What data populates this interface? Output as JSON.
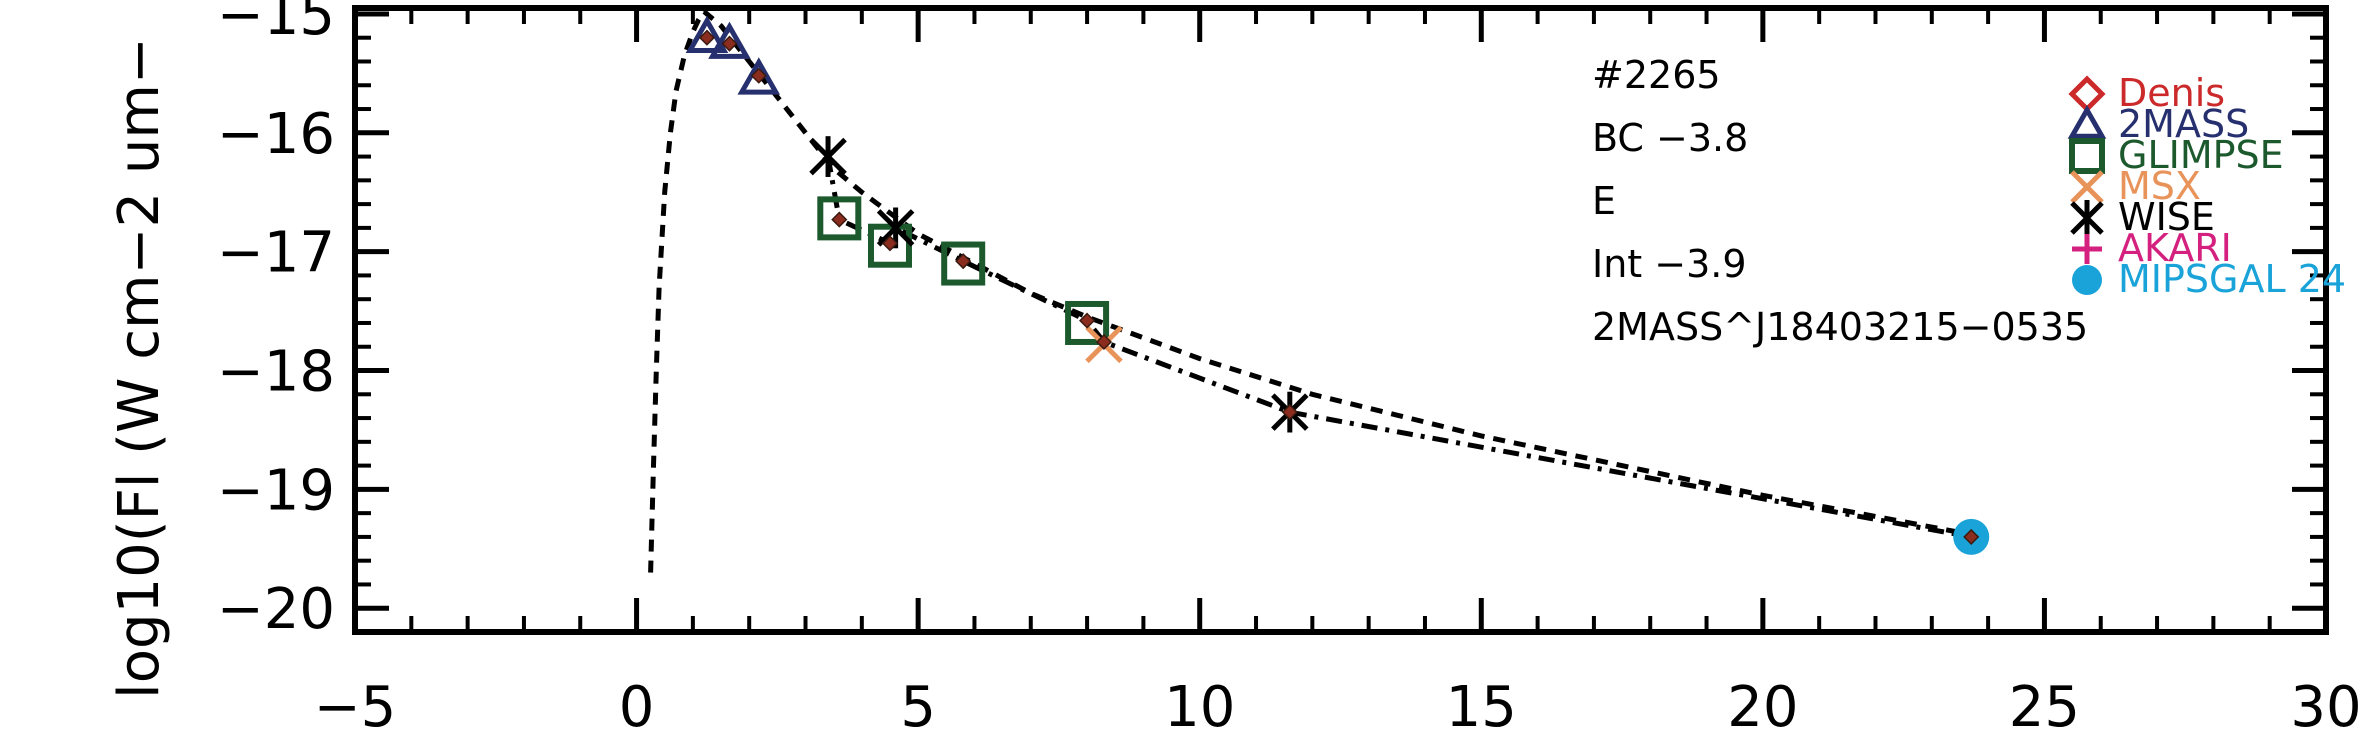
{
  "chart_data": {
    "type": "scatter",
    "title": "",
    "xlabel": "",
    "ylabel": "log10(Fl (W cm−2 um−",
    "xlim": [
      -5,
      30
    ],
    "ylim": [
      -20.2,
      -14.95
    ],
    "x_ticks": [
      -5,
      0,
      5,
      10,
      15,
      20,
      25,
      30
    ],
    "x_tick_labels": [
      "−5",
      "0",
      "5",
      "10",
      "15",
      "20",
      "25",
      "30"
    ],
    "y_ticks": [
      -15,
      -16,
      -17,
      -18,
      -19,
      -20
    ],
    "y_tick_labels": [
      "−15",
      "−16",
      "−17",
      "−18",
      "−19",
      "−20"
    ],
    "grid": false,
    "legend_position": "right",
    "annotations": [
      "#2265",
      "BC −3.8",
      "E",
      "Int −3.9",
      "2MASS^J18403215−0535"
    ],
    "series": [
      {
        "name": "Denis",
        "color": "#cc2a2a",
        "marker": "diamond-open",
        "points": []
      },
      {
        "name": "2MASS",
        "color": "#27306e",
        "marker": "triangle-open",
        "points": [
          [
            1.25,
            -15.2
          ],
          [
            1.65,
            -15.25
          ],
          [
            2.17,
            -15.55
          ]
        ]
      },
      {
        "name": "GLIMPSE",
        "color": "#1c5a2e",
        "marker": "square-open",
        "points": [
          [
            3.6,
            -16.72
          ],
          [
            4.5,
            -16.95
          ],
          [
            5.8,
            -17.1
          ],
          [
            8.0,
            -17.6
          ]
        ]
      },
      {
        "name": "MSX",
        "color": "#e8935a",
        "marker": "x",
        "points": [
          [
            8.3,
            -17.78
          ]
        ]
      },
      {
        "name": "WISE",
        "color": "#000000",
        "marker": "asterisk",
        "points": [
          [
            3.4,
            -16.2
          ],
          [
            4.6,
            -16.8
          ],
          [
            11.6,
            -18.35
          ]
        ]
      },
      {
        "name": "AKARI",
        "color": "#d4207e",
        "marker": "plus",
        "points": []
      },
      {
        "name": "MIPSGAL 24",
        "color": "#1aa3d8",
        "marker": "circle-filled",
        "points": [
          [
            23.7,
            -19.4
          ]
        ]
      }
    ],
    "model_points": {
      "color": "#8b2d1e",
      "points": [
        [
          1.25,
          -15.2
        ],
        [
          1.65,
          -15.25
        ],
        [
          2.17,
          -15.52
        ],
        [
          3.6,
          -16.73
        ],
        [
          4.5,
          -16.93
        ],
        [
          5.8,
          -17.08
        ],
        [
          8.0,
          -17.58
        ],
        [
          8.3,
          -17.76
        ],
        [
          11.6,
          -18.35
        ],
        [
          23.7,
          -19.4
        ]
      ]
    },
    "curves": [
      {
        "style": "dashed",
        "points": [
          [
            0.25,
            -19.7
          ],
          [
            0.3,
            -18.8
          ],
          [
            0.35,
            -18.0
          ],
          [
            0.4,
            -17.3
          ],
          [
            0.5,
            -16.5
          ],
          [
            0.6,
            -16.0
          ],
          [
            0.7,
            -15.65
          ],
          [
            0.85,
            -15.35
          ],
          [
            1.0,
            -15.15
          ],
          [
            1.1,
            -15.05
          ],
          [
            1.2,
            -14.98
          ],
          [
            1.5,
            -15.1
          ],
          [
            2.0,
            -15.4
          ],
          [
            2.5,
            -15.7
          ],
          [
            3.0,
            -16.0
          ],
          [
            3.5,
            -16.3
          ],
          [
            4.0,
            -16.5
          ],
          [
            5.0,
            -16.85
          ],
          [
            6.0,
            -17.1
          ],
          [
            7.0,
            -17.35
          ],
          [
            8.0,
            -17.55
          ],
          [
            10.0,
            -17.9
          ],
          [
            12.0,
            -18.2
          ],
          [
            15.0,
            -18.55
          ],
          [
            20.0,
            -19.05
          ],
          [
            23.7,
            -19.38
          ]
        ]
      },
      {
        "style": "dashdot",
        "points": [
          [
            3.4,
            -16.2
          ],
          [
            3.6,
            -16.73
          ],
          [
            4.5,
            -16.93
          ],
          [
            4.6,
            -16.8
          ],
          [
            5.8,
            -17.08
          ],
          [
            8.0,
            -17.58
          ],
          [
            8.3,
            -17.76
          ],
          [
            11.6,
            -18.35
          ],
          [
            23.7,
            -19.4
          ]
        ]
      }
    ]
  }
}
